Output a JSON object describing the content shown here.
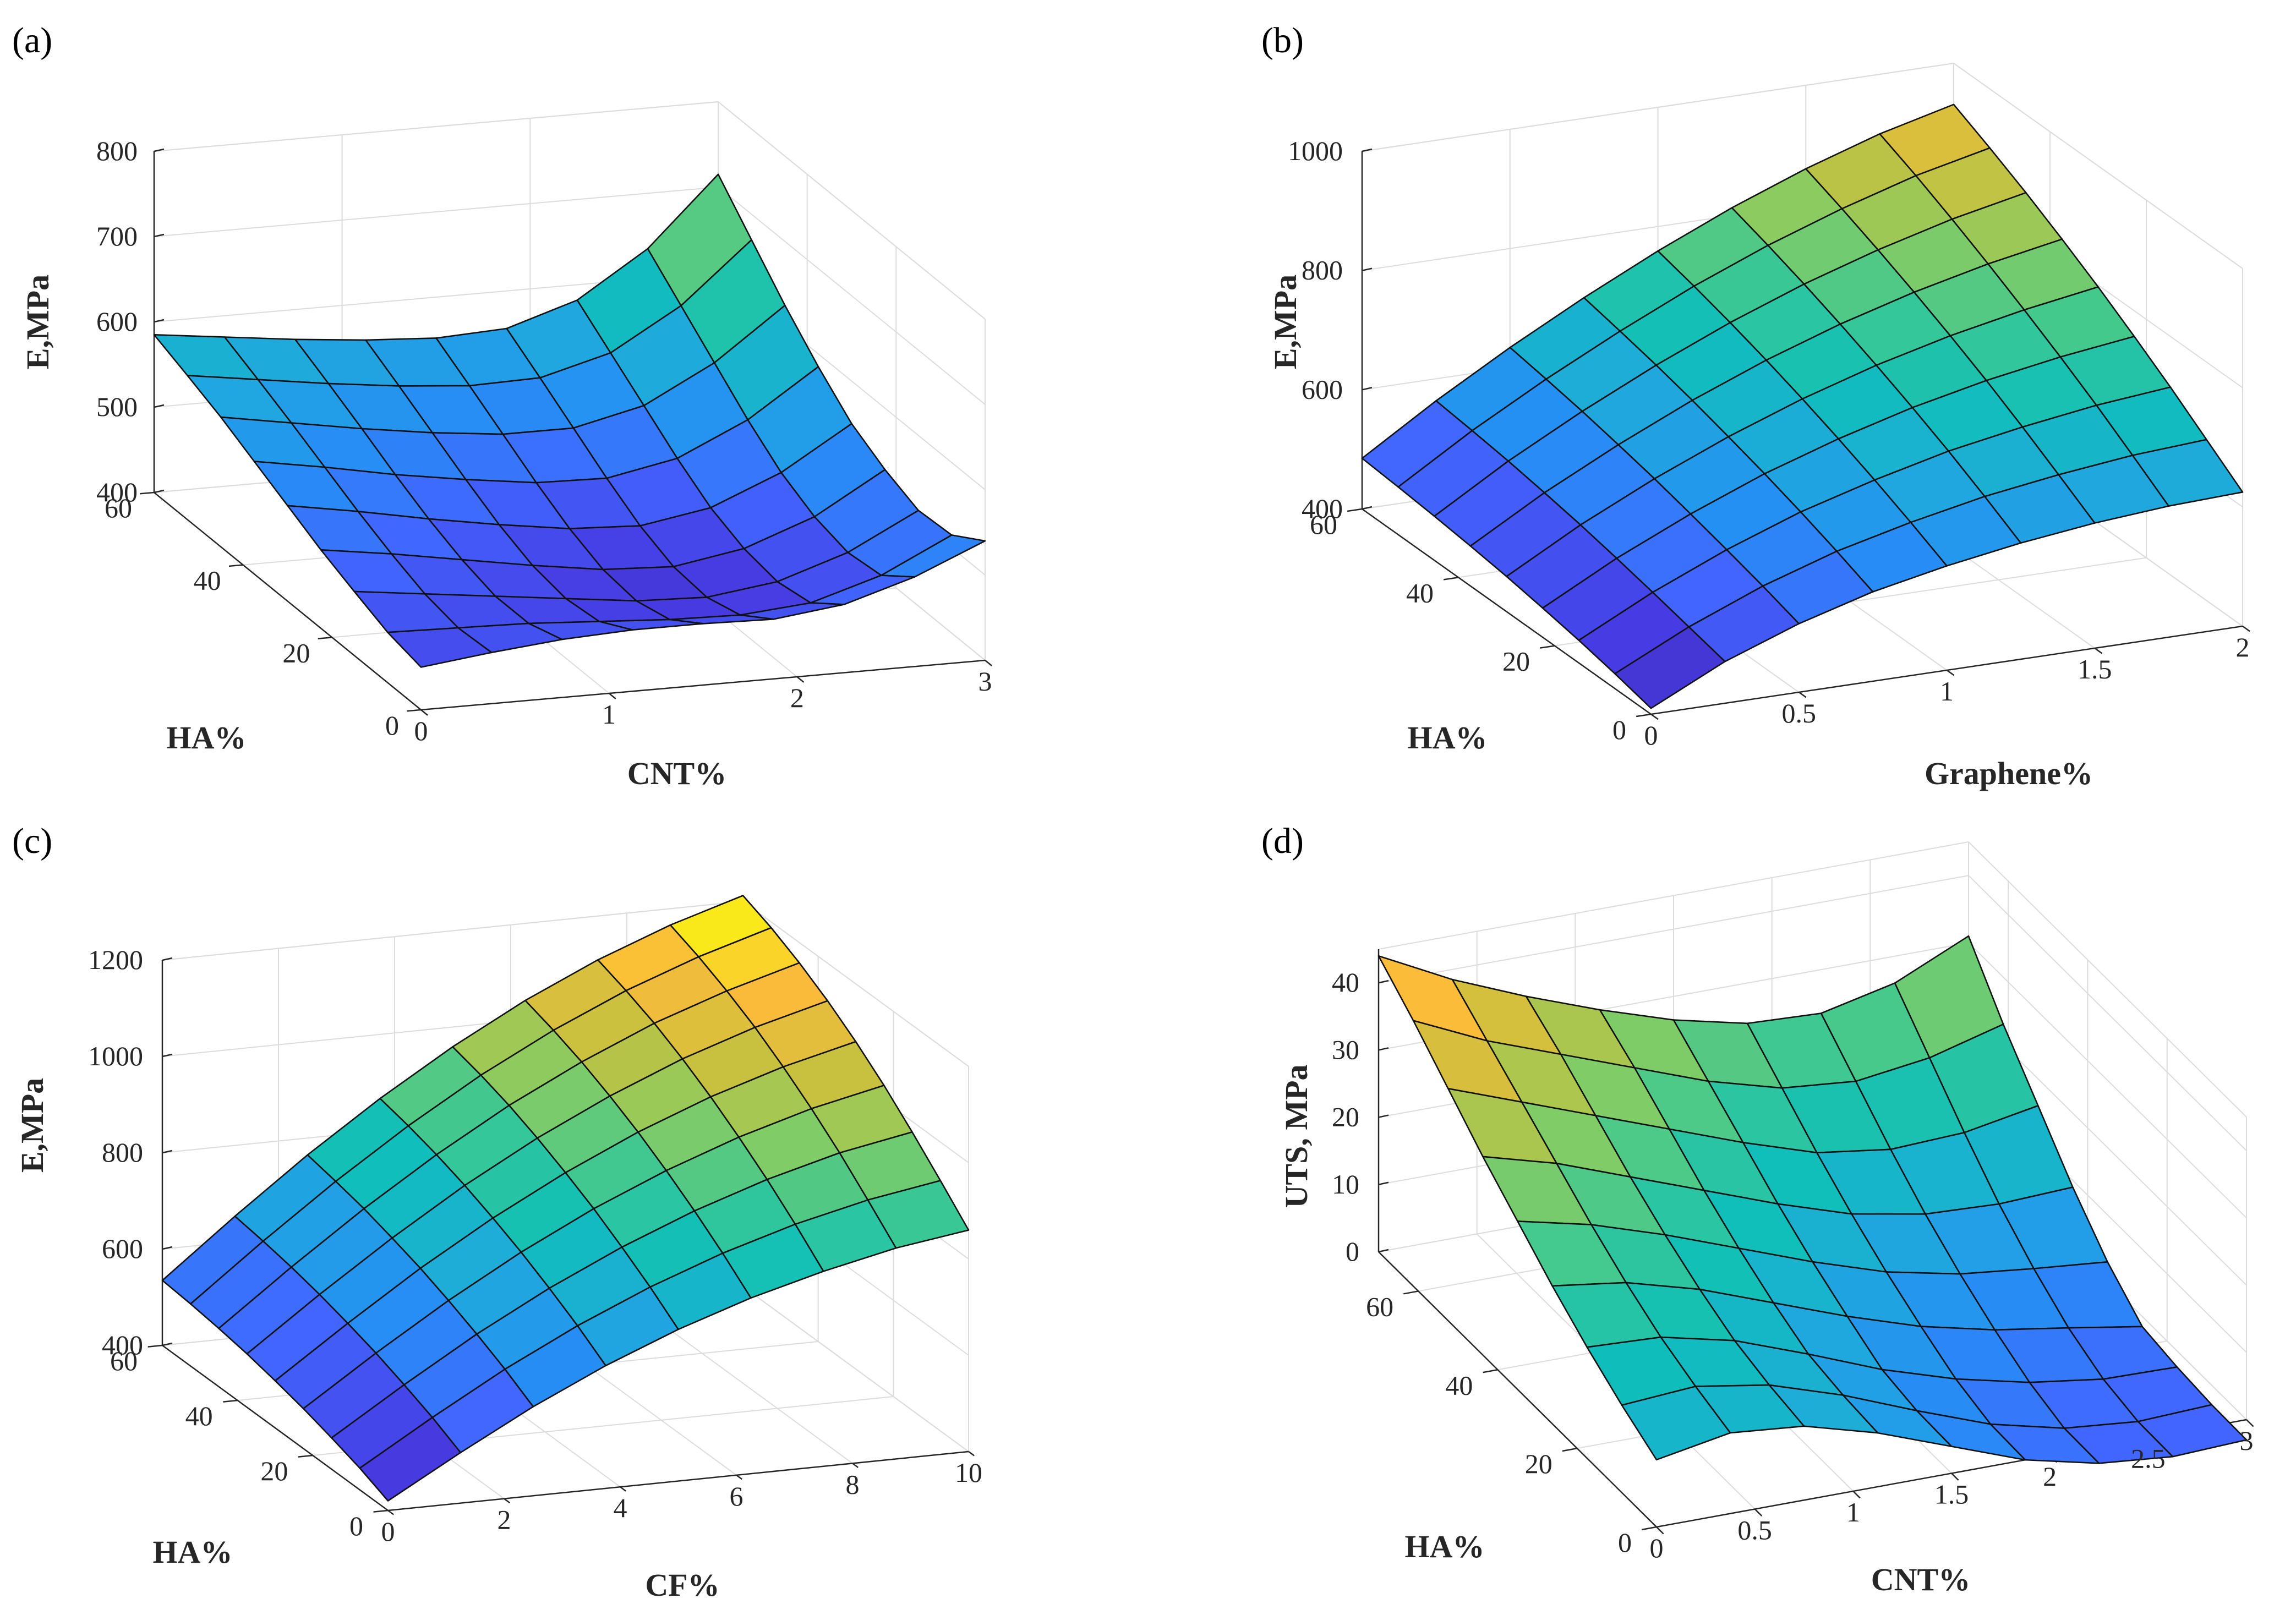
{
  "chart_data": [
    {
      "type": "surface",
      "panel_label": "(a)",
      "xlabel": "CNT%",
      "ylabel": "HA%",
      "zlabel": "E,MPa",
      "x_ticks": [
        "0",
        "1",
        "2",
        "3"
      ],
      "y_ticks": [
        "0",
        "20",
        "40",
        "60"
      ],
      "z_ticks": [
        "400",
        "500",
        "600",
        "700",
        "800"
      ],
      "x": [
        0,
        0.375,
        0.75,
        1.125,
        1.5,
        1.875,
        2.25,
        2.625,
        3.0
      ],
      "y": [
        0,
        7.5,
        15,
        22.5,
        30,
        37.5,
        45,
        52.5,
        60
      ],
      "zlim": [
        400,
        800
      ],
      "color_range": [
        400,
        800
      ],
      "z": [
        [
          450,
          460,
          468,
          472,
          472,
          470,
          480,
          505,
          540
        ],
        [
          459,
          457,
          455,
          450,
          445,
          443,
          450,
          475,
          515
        ],
        [
          475,
          465,
          455,
          445,
          435,
          432,
          443,
          470,
          512
        ],
        [
          492,
          480,
          466,
          452,
          440,
          436,
          450,
          480,
          528
        ],
        [
          512,
          498,
          482,
          468,
          456,
          452,
          466,
          500,
          550
        ],
        [
          532,
          518,
          502,
          489,
          478,
          476,
          492,
          530,
          585
        ],
        [
          552,
          538,
          524,
          512,
          503,
          503,
          522,
          565,
          625
        ],
        [
          569,
          557,
          545,
          535,
          528,
          530,
          552,
          600,
          670
        ],
        [
          585,
          575,
          565,
          557,
          552,
          556,
          582,
          635,
          715
        ]
      ]
    },
    {
      "type": "surface",
      "panel_label": "(b)",
      "xlabel": "Graphene%",
      "ylabel": "HA%",
      "zlabel": "E,MPa",
      "x_ticks": [
        "0",
        "0.5",
        "1",
        "1.5",
        "2"
      ],
      "y_ticks": [
        "0",
        "20",
        "40",
        "60"
      ],
      "z_ticks": [
        "400",
        "600",
        "800",
        "1000"
      ],
      "x": [
        0,
        0.25,
        0.5,
        0.75,
        1.0,
        1.25,
        1.5,
        1.75,
        2.0
      ],
      "y": [
        0,
        7.5,
        15,
        22.5,
        30,
        37.5,
        45,
        52.5,
        60
      ],
      "zlim": [
        400,
        1000
      ],
      "color_range": [
        400,
        1000
      ],
      "z": [
        [
          410,
          470,
          515,
          550,
          575,
          595,
          610,
          620,
          625
        ],
        [
          425,
          485,
          535,
          575,
          605,
          630,
          648,
          662,
          670
        ],
        [
          438,
          500,
          553,
          598,
          633,
          663,
          685,
          703,
          715
        ],
        [
          449,
          514,
          570,
          619,
          659,
          693,
          720,
          741,
          757
        ],
        [
          459,
          527,
          586,
          638,
          683,
          721,
          752,
          777,
          797
        ],
        [
          467,
          538,
          600,
          656,
          705,
          747,
          782,
          811,
          834
        ],
        [
          474,
          548,
          613,
          672,
          725,
          771,
          810,
          843,
          869
        ],
        [
          480,
          556,
          624,
          686,
          743,
          793,
          836,
          873,
          901
        ],
        [
          485,
          563,
          634,
          699,
          759,
          813,
          860,
          900,
          931
        ]
      ]
    },
    {
      "type": "surface",
      "panel_label": "(c)",
      "xlabel": "CF%",
      "ylabel": "HA%",
      "zlabel": "E,MPa",
      "x_ticks": [
        "0",
        "2",
        "4",
        "6",
        "8",
        "10"
      ],
      "y_ticks": [
        "0",
        "20",
        "40",
        "60"
      ],
      "z_ticks": [
        "400",
        "600",
        "800",
        "1000",
        "1200"
      ],
      "x": [
        0,
        1.25,
        2.5,
        3.75,
        5.0,
        6.25,
        7.5,
        8.75,
        10.0
      ],
      "y": [
        0,
        7.5,
        15,
        22.5,
        30,
        37.5,
        45,
        52.5,
        60
      ],
      "zlim": [
        400,
        1200
      ],
      "color_range": [
        400,
        1200
      ],
      "z": [
        [
          420,
          505,
          585,
          655,
          715,
          765,
          805,
          838,
          860
        ],
        [
          445,
          535,
          620,
          695,
          760,
          815,
          860,
          895,
          920
        ],
        [
          465,
          560,
          650,
          730,
          800,
          860,
          910,
          950,
          978
        ],
        [
          483,
          583,
          677,
          762,
          837,
          901,
          955,
          999,
          1032
        ],
        [
          498,
          602,
          701,
          790,
          869,
          938,
          996,
          1043,
          1080
        ],
        [
          511,
          619,
          721,
          815,
          898,
          970,
          1032,
          1082,
          1122
        ],
        [
          521,
          633,
          739,
          836,
          923,
          998,
          1063,
          1115,
          1158
        ],
        [
          529,
          644,
          753,
          853,
          943,
          1021,
          1088,
          1143,
          1188
        ],
        [
          535,
          653,
          765,
          867,
          959,
          1040,
          1109,
          1166,
          1212
        ]
      ]
    },
    {
      "type": "surface",
      "panel_label": "(d)",
      "xlabel": "CNT%",
      "ylabel": "HA%",
      "zlabel": "UTS, MPa",
      "x_ticks": [
        "0",
        "0.5",
        "1",
        "1.5",
        "2",
        "2.5",
        "3"
      ],
      "y_ticks": [
        "0",
        "20",
        "40",
        "60"
      ],
      "z_ticks": [
        "0",
        "10",
        "20",
        "30",
        "40"
      ],
      "x": [
        0,
        0.375,
        0.75,
        1.125,
        1.5,
        1.875,
        2.25,
        2.625,
        3.0
      ],
      "y": [
        0,
        8.75,
        17.5,
        26.25,
        35,
        43.75,
        52.5,
        61.25,
        70
      ],
      "zlim": [
        0,
        45
      ],
      "color_range": [
        -15,
        45
      ],
      "z": [
        [
          10,
          12,
          11,
          8,
          4,
          0,
          -2.5,
          -3.5,
          -3
        ],
        [
          13,
          13.8,
          12,
          8.5,
          4.2,
          0.2,
          -2.4,
          -3.4,
          -2.9
        ],
        [
          16.5,
          16,
          13.5,
          9.5,
          5.2,
          1.8,
          -0.7,
          -2.2,
          -2.4
        ],
        [
          20.5,
          19,
          16,
          12,
          8,
          4.5,
          2,
          0.3,
          -1.5
        ],
        [
          25,
          22.5,
          19,
          15,
          11,
          7.5,
          5.2,
          4,
          3
        ],
        [
          29.5,
          26.5,
          22.5,
          18.5,
          14.5,
          11,
          9,
          8.5,
          9
        ],
        [
          34.5,
          30.5,
          26.5,
          22.5,
          18.5,
          15,
          13.5,
          14,
          16
        ],
        [
          39.5,
          34.5,
          30.5,
          26.5,
          22.5,
          19.5,
          18.5,
          20,
          23
        ],
        [
          44,
          38.5,
          34,
          30,
          26.5,
          24,
          23.5,
          26,
          31
        ]
      ]
    }
  ]
}
